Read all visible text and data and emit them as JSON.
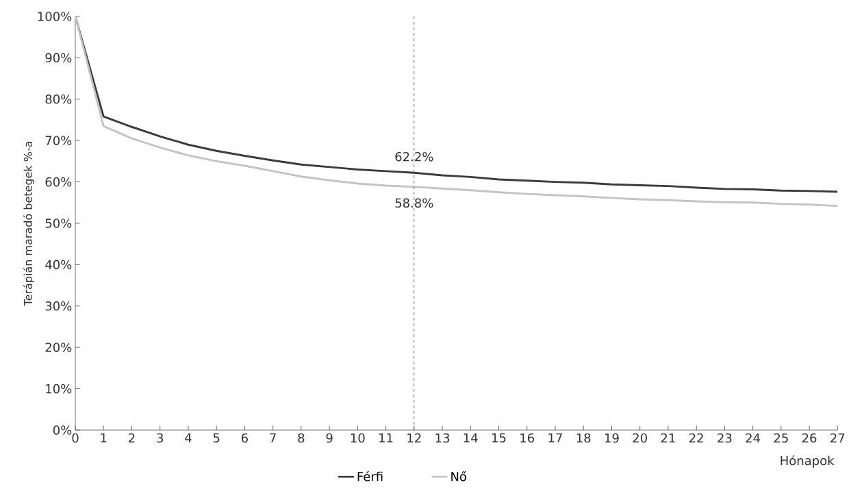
{
  "chart_data": {
    "type": "line",
    "xlabel": "Hónapok",
    "ylabel": "Terápián maradó betegek %-a",
    "x": [
      0,
      1,
      2,
      3,
      4,
      5,
      6,
      7,
      8,
      9,
      10,
      11,
      12,
      13,
      14,
      15,
      16,
      17,
      18,
      19,
      20,
      21,
      22,
      23,
      24,
      25,
      26,
      27
    ],
    "series": [
      {
        "name": "Férfi",
        "color": "#3c3c3c",
        "values": [
          100,
          75.8,
          73.3,
          71.0,
          69.0,
          67.5,
          66.3,
          65.2,
          64.2,
          63.6,
          63.0,
          62.6,
          62.2,
          61.6,
          61.2,
          60.6,
          60.3,
          60.0,
          59.8,
          59.4,
          59.2,
          59.0,
          58.6,
          58.3,
          58.2,
          57.9,
          57.8,
          57.6
        ]
      },
      {
        "name": "Nő",
        "color": "#c4c4c8",
        "values": [
          100,
          73.5,
          70.5,
          68.3,
          66.4,
          65.0,
          63.9,
          62.6,
          61.3,
          60.4,
          59.6,
          59.1,
          58.8,
          58.4,
          58.0,
          57.5,
          57.1,
          56.8,
          56.5,
          56.1,
          55.8,
          55.6,
          55.3,
          55.1,
          55.0,
          54.7,
          54.5,
          54.2
        ]
      }
    ],
    "xlim": [
      0,
      27
    ],
    "xticks": [
      0,
      1,
      2,
      3,
      4,
      5,
      6,
      7,
      8,
      9,
      10,
      11,
      12,
      13,
      14,
      15,
      16,
      17,
      18,
      19,
      20,
      21,
      22,
      23,
      24,
      25,
      26,
      27
    ],
    "ylim": [
      0,
      100
    ],
    "yticks": [
      {
        "value": 0,
        "label": "0%"
      },
      {
        "value": 10,
        "label": "10%"
      },
      {
        "value": 20,
        "label": "20%"
      },
      {
        "value": 30,
        "label": "30%"
      },
      {
        "value": 40,
        "label": "40%"
      },
      {
        "value": 50,
        "label": "50%"
      },
      {
        "value": 60,
        "label": "60%"
      },
      {
        "value": 70,
        "label": "70%"
      },
      {
        "value": 80,
        "label": "80%"
      },
      {
        "value": 90,
        "label": "90%"
      },
      {
        "value": 100,
        "label": "100%"
      }
    ],
    "ref_lines": [
      {
        "axis": "x",
        "value": 12,
        "line_style": "dashed",
        "color": "#555555"
      }
    ],
    "annotations": [
      {
        "text": "62.2%",
        "x": 12,
        "y": 62.2
      },
      {
        "text": "58.8%",
        "x": 12,
        "y": 58.8
      }
    ],
    "legend": "bottom",
    "grid": false
  }
}
